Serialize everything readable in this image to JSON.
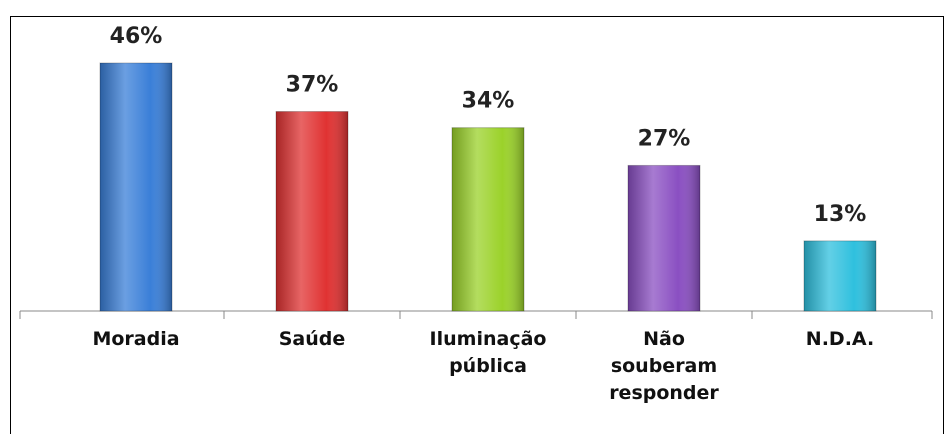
{
  "chart_data": {
    "type": "bar",
    "categories": [
      "Moradia",
      "Saúde",
      "Iluminação pública",
      "Não souberam responder",
      "N.D.A."
    ],
    "values": [
      46,
      37,
      34,
      27,
      13
    ],
    "value_labels": [
      "46%",
      "37%",
      "34%",
      "27%",
      "13%"
    ],
    "colors": [
      "#3a7fd8",
      "#e03232",
      "#9bd22a",
      "#8a4fc2",
      "#2fc0de"
    ]
  }
}
